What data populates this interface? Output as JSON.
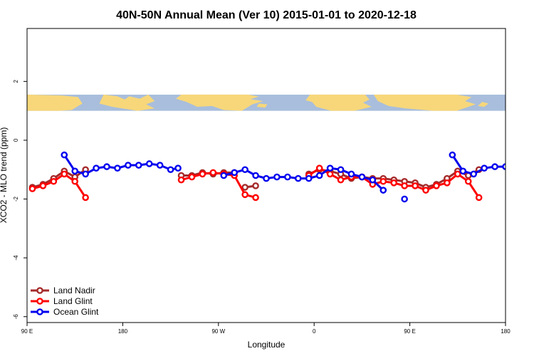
{
  "chart_data": {
    "type": "line",
    "title": "40N-50N Annual Mean (Ver 10)   2015-01-01 to 2020-12-18",
    "xlabel": "Longitude",
    "ylabel": "XCO2 - MLO trend (ppm)",
    "xlim": [
      -90,
      360
    ],
    "ylim": [
      -6.2,
      3.8
    ],
    "x_ticks": [
      {
        "value": -90,
        "label": "90 E"
      },
      {
        "value": 0,
        "label": "180"
      },
      {
        "value": 90,
        "label": "90 W"
      },
      {
        "value": 180,
        "label": "0"
      },
      {
        "value": 270,
        "label": "90 E"
      },
      {
        "value": 360,
        "label": "180"
      }
    ],
    "y_ticks": [
      {
        "value": 2,
        "label": "2"
      },
      {
        "value": 0,
        "label": "0"
      },
      {
        "value": -2,
        "label": "-2"
      },
      {
        "value": -4,
        "label": "-4"
      },
      {
        "value": -6,
        "label": "-6"
      }
    ],
    "map_band": {
      "ymin": 1.0,
      "ymax": 1.55,
      "land_color": "#f7d77a",
      "ocean_color": "#a9bedc"
    },
    "legend": {
      "position": "bottom-left"
    },
    "series": [
      {
        "name": "Land Nadir",
        "color": "#a52a2a",
        "segments": [
          [
            [
              -85,
              -1.6
            ],
            [
              -75,
              -1.5
            ],
            [
              -65,
              -1.3
            ],
            [
              -55,
              -1.05
            ],
            [
              -45,
              -1.25
            ],
            [
              -35,
              -1.0
            ]
          ],
          [
            [
              55,
              -1.2
            ],
            [
              65,
              -1.2
            ],
            [
              75,
              -1.1
            ],
            [
              85,
              -1.15
            ],
            [
              95,
              -1.1
            ],
            [
              105,
              -1.1
            ]
          ],
          [
            [
              115,
              -1.6
            ],
            [
              125,
              -1.55
            ]
          ],
          [
            [
              175,
              -1.15
            ],
            [
              185,
              -1.0
            ],
            [
              195,
              -1.05
            ],
            [
              205,
              -1.15
            ],
            [
              215,
              -1.3
            ],
            [
              225,
              -1.25
            ],
            [
              235,
              -1.3
            ],
            [
              245,
              -1.3
            ],
            [
              255,
              -1.35
            ],
            [
              265,
              -1.4
            ],
            [
              275,
              -1.45
            ],
            [
              285,
              -1.6
            ],
            [
              295,
              -1.5
            ],
            [
              305,
              -1.3
            ],
            [
              315,
              -1.05
            ],
            [
              325,
              -1.2
            ],
            [
              335,
              -1.0
            ]
          ]
        ]
      },
      {
        "name": "Land Glint",
        "color": "#ff0000",
        "segments": [
          [
            [
              -85,
              -1.65
            ],
            [
              -75,
              -1.55
            ],
            [
              -65,
              -1.4
            ],
            [
              -55,
              -1.15
            ],
            [
              -45,
              -1.4
            ],
            [
              -35,
              -1.95
            ]
          ],
          [
            [
              55,
              -1.35
            ],
            [
              65,
              -1.25
            ],
            [
              75,
              -1.15
            ],
            [
              85,
              -1.1
            ],
            [
              95,
              -1.15
            ],
            [
              105,
              -1.2
            ],
            [
              115,
              -1.85
            ],
            [
              125,
              -1.95
            ]
          ],
          [
            [
              175,
              -1.2
            ],
            [
              185,
              -0.95
            ],
            [
              195,
              -1.15
            ],
            [
              205,
              -1.35
            ],
            [
              215,
              -1.25
            ],
            [
              225,
              -1.25
            ],
            [
              235,
              -1.5
            ],
            [
              245,
              -1.4
            ],
            [
              255,
              -1.45
            ],
            [
              265,
              -1.55
            ],
            [
              275,
              -1.55
            ],
            [
              285,
              -1.7
            ],
            [
              295,
              -1.55
            ],
            [
              305,
              -1.45
            ],
            [
              315,
              -1.15
            ],
            [
              325,
              -1.4
            ],
            [
              335,
              -1.95
            ]
          ]
        ]
      },
      {
        "name": "Ocean Glint",
        "color": "#0000ee",
        "segments": [
          [
            [
              -55,
              -0.5
            ],
            [
              -45,
              -1.05
            ],
            [
              -35,
              -1.15
            ],
            [
              -25,
              -0.95
            ],
            [
              -15,
              -0.9
            ],
            [
              -5,
              -0.95
            ],
            [
              5,
              -0.85
            ],
            [
              15,
              -0.85
            ],
            [
              25,
              -0.8
            ],
            [
              35,
              -0.85
            ],
            [
              45,
              -1.0
            ],
            [
              52,
              -0.95
            ]
          ],
          [
            [
              95,
              -1.2
            ],
            [
              105,
              -1.1
            ],
            [
              115,
              -1.0
            ],
            [
              125,
              -1.2
            ],
            [
              135,
              -1.3
            ],
            [
              145,
              -1.25
            ],
            [
              155,
              -1.25
            ],
            [
              165,
              -1.3
            ],
            [
              175,
              -1.3
            ],
            [
              185,
              -1.2
            ],
            [
              195,
              -0.95
            ],
            [
              205,
              -1.0
            ],
            [
              215,
              -1.15
            ],
            [
              225,
              -1.25
            ],
            [
              235,
              -1.35
            ],
            [
              245,
              -1.7
            ]
          ],
          [
            [
              265,
              -2.0
            ]
          ],
          [
            [
              310,
              -0.5
            ],
            [
              320,
              -1.05
            ],
            [
              330,
              -1.15
            ],
            [
              340,
              -0.95
            ],
            [
              350,
              -0.9
            ],
            [
              360,
              -0.9
            ]
          ]
        ]
      }
    ]
  }
}
